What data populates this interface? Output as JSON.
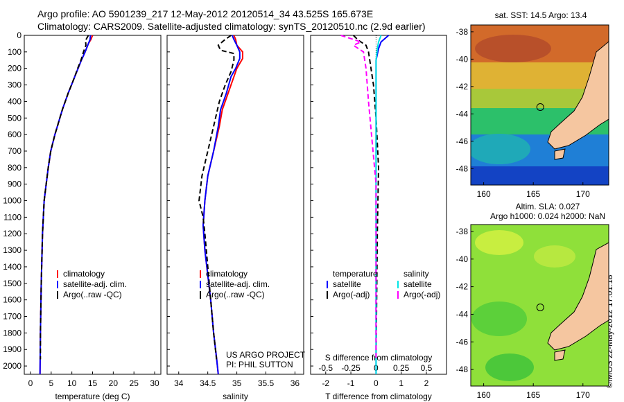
{
  "header": {
    "line1": "Argo profile: AO 5901239_217 12-May-2012 20120514_34 43.525S 165.673E",
    "line2": "Climatology: CARS2009. Satellite-adjusted climatology: synTS_20120510.nc (2.9d earlier)"
  },
  "side_label": "©IMOS 22-May-2012 17:01:18",
  "colors": {
    "climatology": "#ff0000",
    "satellite": "#0000ff",
    "argo": "#000000",
    "sal_satellite": "#00e5e5",
    "sal_argo": "#ff00ff",
    "land": "#f5c6a0"
  },
  "credits": [
    "US ARGO PROJECT",
    "PI: PHIL SUTTON"
  ],
  "chart_data": [
    {
      "type": "line",
      "ylim": [
        0,
        2050
      ],
      "yticks": [
        0,
        100,
        200,
        300,
        400,
        500,
        600,
        700,
        800,
        900,
        1000,
        1100,
        1200,
        1300,
        1400,
        1500,
        1600,
        1700,
        1800,
        1900,
        2000
      ],
      "xlim": [
        -1.5,
        31.5
      ],
      "xticks": [
        0,
        5,
        10,
        15,
        20,
        25,
        30
      ],
      "xlabel": "temperature (deg C)",
      "legend": [
        "climatology",
        "satellite-adj. clim.",
        "Argo(..raw -QC)"
      ],
      "series": [
        {
          "name": "climatology",
          "color": "#ff0000",
          "dash": "",
          "x": [
            15,
            14.6,
            14,
            13.2,
            12.3,
            11.5,
            10.7,
            9.9,
            9.1,
            8.4,
            7.7,
            7.1,
            6.5,
            5.9,
            5.4,
            4.9,
            4.3,
            3.8,
            3.3,
            2.9,
            2.6,
            2.4,
            2.3
          ],
          "y": [
            0,
            25,
            50,
            100,
            150,
            200,
            250,
            300,
            350,
            400,
            450,
            500,
            550,
            600,
            650,
            700,
            800,
            900,
            1000,
            1200,
            1500,
            1800,
            2050
          ]
        },
        {
          "name": "satellite-adj. clim.",
          "color": "#0000ff",
          "dash": "",
          "x": [
            14.5,
            14.4,
            14,
            13.2,
            12.3,
            11.5,
            10.7,
            9.9,
            9.1,
            8.4,
            7.7,
            7.1,
            6.5,
            5.9,
            5.4,
            4.9,
            4.3,
            3.8,
            3.3,
            2.9,
            2.6,
            2.4,
            2.3
          ],
          "y": [
            0,
            25,
            50,
            100,
            150,
            200,
            250,
            300,
            350,
            400,
            450,
            500,
            550,
            600,
            650,
            700,
            800,
            900,
            1000,
            1200,
            1500,
            1800,
            2050
          ]
        },
        {
          "name": "Argo(..raw -QC)",
          "color": "#000000",
          "dash": "7,4",
          "x": [
            14,
            13.3,
            13.4,
            12.8,
            12.2,
            11.4,
            10.7,
            9.9,
            9.1,
            8.4,
            7.7,
            7.1,
            6.5,
            5.9,
            5.4,
            4.9,
            4.3,
            3.8,
            3.3,
            2.9,
            2.6,
            2.4,
            2.4
          ],
          "y": [
            0,
            30,
            60,
            100,
            150,
            200,
            250,
            300,
            350,
            400,
            450,
            500,
            550,
            600,
            650,
            700,
            800,
            900,
            1000,
            1200,
            1500,
            1800,
            1960
          ]
        }
      ]
    },
    {
      "type": "line",
      "ylim": [
        0,
        2050
      ],
      "xlim": [
        33.8,
        36.15
      ],
      "xticks": [
        34,
        34.5,
        35,
        35.5,
        36
      ],
      "xlabel": "salinity",
      "legend": [
        "climatology",
        "satellite-adj. clim.",
        "Argo(..raw -QC)"
      ],
      "series": [
        {
          "name": "climatology",
          "color": "#ff0000",
          "dash": "",
          "x": [
            34.95,
            34.98,
            35,
            35.1,
            35.1,
            35.0,
            34.95,
            34.85,
            34.75,
            34.7,
            34.6,
            34.5,
            34.45,
            34.42,
            34.45,
            34.5,
            34.55,
            34.6,
            34.65,
            34.68
          ],
          "y": [
            0,
            25,
            60,
            100,
            140,
            200,
            250,
            350,
            450,
            550,
            700,
            850,
            1000,
            1150,
            1300,
            1450,
            1600,
            1800,
            1950,
            2050
          ]
        },
        {
          "name": "satellite-adj. clim.",
          "color": "#0000ff",
          "dash": "",
          "x": [
            34.92,
            34.95,
            35.0,
            35.05,
            35.05,
            34.98,
            34.9,
            34.82,
            34.72,
            34.68,
            34.6,
            34.5,
            34.45,
            34.42,
            34.45,
            34.5,
            34.55,
            34.6,
            34.65,
            34.68
          ],
          "y": [
            0,
            25,
            60,
            100,
            140,
            200,
            250,
            350,
            450,
            550,
            700,
            850,
            1000,
            1150,
            1300,
            1450,
            1600,
            1800,
            1950,
            2050
          ]
        },
        {
          "name": "Argo(..raw -QC)",
          "color": "#000000",
          "dash": "7,4",
          "x": [
            34.9,
            34.78,
            34.68,
            34.72,
            34.95,
            34.95,
            34.9,
            34.8,
            34.7,
            34.6,
            34.5,
            34.4,
            34.35,
            34.42,
            34.45,
            34.5,
            34.55,
            34.6,
            34.65
          ],
          "y": [
            0,
            30,
            60,
            90,
            110,
            150,
            220,
            300,
            400,
            550,
            700,
            850,
            1000,
            1100,
            1200,
            1400,
            1600,
            1800,
            1960
          ]
        }
      ]
    },
    {
      "type": "line",
      "ylim": [
        0,
        2050
      ],
      "xlim": [
        -2.6,
        2.8
      ],
      "xticks": [
        -2,
        -1,
        0,
        1,
        2
      ],
      "xlabel": "T difference from climatology",
      "top_axis_label": "S difference from climatology",
      "top_ticks": [
        "-0.5",
        "-0.25",
        "0",
        "0.25",
        "0.5"
      ],
      "top_tick_t": [
        -2,
        -1,
        0,
        1,
        2
      ],
      "legend_titles": [
        "temperature",
        "salinity"
      ],
      "legend": [
        "satellite",
        "Argo(-adj)",
        "satellite",
        "Argo(-adj)"
      ],
      "series": [
        {
          "name": "satellite",
          "color": "#0000ff",
          "dash": "",
          "x": [
            0.5,
            0.2,
            0.1,
            0,
            0,
            0,
            0,
            0,
            0
          ],
          "y": [
            0,
            40,
            80,
            150,
            300,
            600,
            1000,
            1500,
            2050
          ]
        },
        {
          "name": "Argo(-adj)",
          "color": "#000000",
          "dash": "7,4",
          "x": [
            -0.9,
            -0.7,
            -0.4,
            -0.3,
            -0.2,
            -0.1,
            0,
            0.1,
            0.05,
            0
          ],
          "y": [
            0,
            30,
            60,
            100,
            200,
            300,
            500,
            800,
            1200,
            1960
          ]
        },
        {
          "name": "satellite",
          "color": "#00e5e5",
          "dash": "",
          "x": [
            0.2,
            0.1,
            0.05,
            0,
            0,
            0,
            0,
            0,
            0
          ],
          "y": [
            0,
            40,
            80,
            150,
            300,
            600,
            1000,
            1500,
            2050
          ]
        },
        {
          "name": "Argo(-adj)",
          "color": "#ff00ff",
          "dash": "7,4",
          "x": [
            -1.4,
            -0.6,
            -0.9,
            -0.5,
            -0.4,
            -0.3,
            -0.15,
            0,
            0
          ],
          "y": [
            0,
            40,
            60,
            100,
            200,
            400,
            650,
            900,
            1960
          ]
        }
      ]
    }
  ],
  "maps": [
    {
      "title": "sat. SST: 14.5  Argo: 13.4",
      "lon_ticks": [
        160,
        165,
        170
      ],
      "lat_ticks": [
        -38,
        -40,
        -42,
        -44,
        -46,
        -48
      ],
      "lon_range": [
        158.7,
        172.6
      ],
      "lat_range": [
        -37.5,
        -49.2
      ],
      "marker": {
        "lon": 165.7,
        "lat": -43.5
      }
    },
    {
      "title_lines": [
        "Altim. SLA: 0.027",
        "Argo h1000: 0.024 h2000: NaN"
      ],
      "lon_ticks": [
        160,
        165,
        170
      ],
      "lat_ticks": [
        -38,
        -40,
        -42,
        -44,
        -46,
        -48
      ],
      "lon_range": [
        158.7,
        172.6
      ],
      "lat_range": [
        -37.5,
        -49.2
      ],
      "marker": {
        "lon": 165.7,
        "lat": -43.5
      }
    }
  ]
}
